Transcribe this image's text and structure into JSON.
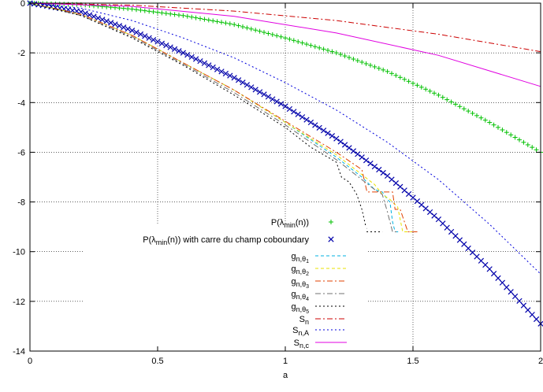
{
  "chart_data": {
    "type": "line",
    "title": "",
    "xlabel": "a",
    "ylabel": "",
    "xlim": [
      0,
      2
    ],
    "ylim": [
      -14,
      0
    ],
    "grid": true,
    "legend_position": "bottom-center",
    "x_ticks": [
      {
        "value": 0,
        "label": "0"
      },
      {
        "value": 0.5,
        "label": "0.5"
      },
      {
        "value": 1,
        "label": "1"
      },
      {
        "value": 1.5,
        "label": "1.5"
      },
      {
        "value": 2,
        "label": "2"
      }
    ],
    "y_ticks": [
      {
        "value": 0,
        "label": "0"
      },
      {
        "value": -2,
        "label": "-2"
      },
      {
        "value": -4,
        "label": "-4"
      },
      {
        "value": -6,
        "label": "-6"
      },
      {
        "value": -8,
        "label": "-8"
      },
      {
        "value": -10,
        "label": "-10"
      },
      {
        "value": -12,
        "label": "-12"
      },
      {
        "value": -14,
        "label": "-14"
      }
    ],
    "series": [
      {
        "name": "P(λ_min(n))",
        "legend_text": "P(λ",
        "legend_sub": "min",
        "legend_after": "(n))",
        "color": "#00c000",
        "style": "plus",
        "x": [
          0,
          0.2,
          0.4,
          0.6,
          0.8,
          1.0,
          1.2,
          1.4,
          1.6,
          1.8,
          2.0
        ],
        "y": [
          0,
          -0.06,
          -0.24,
          -0.5,
          -0.86,
          -1.4,
          -2.0,
          -2.75,
          -3.7,
          -4.8,
          -6.0
        ]
      },
      {
        "name": "P(λ_min(n)) with carre du champ coboundary",
        "legend_text": "P(λ",
        "legend_sub": "min",
        "legend_after": "(n)) with carre du champ coboundary",
        "color": "#0000aa",
        "style": "cross",
        "x": [
          0,
          0.2,
          0.4,
          0.6,
          0.8,
          1.0,
          1.2,
          1.4,
          1.6,
          1.8,
          2.0
        ],
        "y": [
          0,
          -0.35,
          -1.1,
          -2.0,
          -3.0,
          -4.15,
          -5.45,
          -6.95,
          -8.7,
          -10.7,
          -12.9
        ]
      },
      {
        "name": "g_{n,θ1}",
        "legend_text": "g",
        "legend_sub": "n,θ",
        "legend_subsub": "1",
        "color": "#00b0e0",
        "style": "dash",
        "x": [
          0,
          0.2,
          0.4,
          0.6,
          0.8,
          1.0,
          1.2,
          1.3,
          1.35,
          1.38,
          1.4,
          1.41,
          1.42,
          1.43,
          1.45
        ],
        "y": [
          0,
          -0.45,
          -1.3,
          -2.4,
          -3.5,
          -4.8,
          -6.2,
          -7.0,
          -7.5,
          -7.6,
          -7.9,
          -8.0,
          -8.8,
          -9.2,
          -9.2
        ]
      },
      {
        "name": "g_{n,θ2}",
        "legend_text": "g",
        "legend_sub": "n,θ",
        "legend_subsub": "2",
        "color": "#e8e000",
        "style": "dash",
        "x": [
          0,
          0.2,
          0.4,
          0.6,
          0.8,
          1.0,
          1.2,
          1.3,
          1.35,
          1.38,
          1.41,
          1.44,
          1.46,
          1.5
        ],
        "y": [
          0,
          -0.45,
          -1.3,
          -2.4,
          -3.5,
          -4.8,
          -6.1,
          -6.9,
          -7.3,
          -7.7,
          -7.9,
          -8.2,
          -9.2,
          -9.2
        ]
      },
      {
        "name": "g_{n,θ3}",
        "legend_text": "g",
        "legend_sub": "n,θ",
        "legend_subsub": "3",
        "color": "#e04000",
        "style": "dashdot",
        "x": [
          0,
          0.2,
          0.4,
          0.6,
          0.8,
          1.0,
          1.2,
          1.3,
          1.32,
          1.4,
          1.42,
          1.43,
          1.45,
          1.48,
          1.52
        ],
        "y": [
          0,
          -0.45,
          -1.3,
          -2.4,
          -3.5,
          -4.75,
          -6.0,
          -6.7,
          -7.6,
          -7.6,
          -7.6,
          -8.3,
          -8.3,
          -9.2,
          -9.2
        ]
      },
      {
        "name": "g_{n,θ4}",
        "legend_text": "g",
        "legend_sub": "n,θ",
        "legend_subsub": "4",
        "color": "#707070",
        "style": "dashdot",
        "x": [
          0,
          0.2,
          0.4,
          0.6,
          0.8,
          1.0,
          1.2,
          1.3,
          1.35,
          1.38,
          1.4,
          1.42,
          1.44
        ],
        "y": [
          0,
          -0.5,
          -1.35,
          -2.45,
          -3.6,
          -4.9,
          -6.3,
          -7.1,
          -7.5,
          -7.7,
          -8.4,
          -9.2,
          -9.2
        ]
      },
      {
        "name": "g_{n,θ5}",
        "legend_text": "g",
        "legend_sub": "n,θ",
        "legend_subsub": "5",
        "color": "#000000",
        "style": "dot",
        "x": [
          0,
          0.2,
          0.4,
          0.6,
          0.8,
          1.0,
          1.1,
          1.2,
          1.22,
          1.25,
          1.28,
          1.3,
          1.32,
          1.35,
          1.38
        ],
        "y": [
          0,
          -0.5,
          -1.4,
          -2.5,
          -3.7,
          -5.0,
          -5.8,
          -6.4,
          -7.0,
          -7.2,
          -7.7,
          -8.3,
          -9.2,
          -9.2,
          -9.2
        ]
      },
      {
        "name": "S_n",
        "legend_text": "S",
        "legend_sub": "n",
        "color": "#cc0000",
        "style": "dashdot",
        "x": [
          0,
          0.4,
          0.8,
          1.2,
          1.6,
          2.0
        ],
        "y": [
          0,
          -0.08,
          -0.32,
          -0.7,
          -1.25,
          -1.95
        ]
      },
      {
        "name": "S_{n,A}",
        "legend_text": "S",
        "legend_sub": "n,A",
        "color": "#0000dd",
        "style": "dot",
        "x": [
          0,
          0.2,
          0.4,
          0.6,
          0.8,
          1.0,
          1.2,
          1.4,
          1.6,
          1.8,
          2.0
        ],
        "y": [
          0,
          -0.2,
          -0.7,
          -1.4,
          -2.2,
          -3.2,
          -4.3,
          -5.6,
          -7.1,
          -8.9,
          -10.9
        ]
      },
      {
        "name": "S_{n,c}",
        "legend_text": "S",
        "legend_sub": "n,c",
        "color": "#e000e0",
        "style": "solid",
        "x": [
          0,
          0.4,
          0.8,
          1.2,
          1.6,
          2.0
        ],
        "y": [
          0,
          -0.13,
          -0.53,
          -1.2,
          -2.1,
          -3.35
        ]
      }
    ]
  }
}
